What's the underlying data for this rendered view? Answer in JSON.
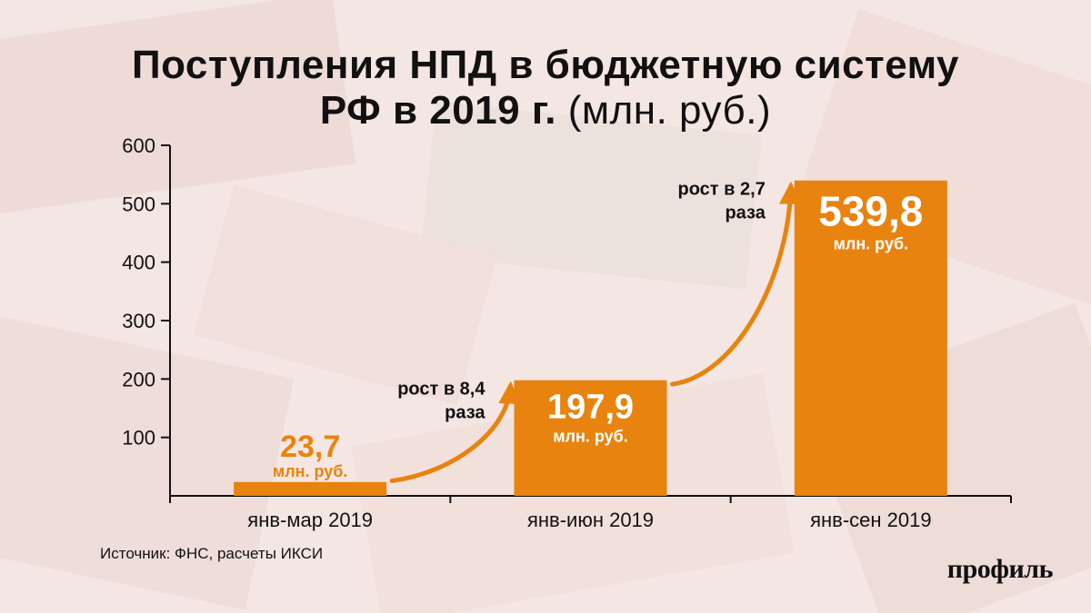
{
  "title": {
    "line1": "Поступления НПД в бюджетную систему",
    "line2_main": "РФ в 2019 г.",
    "line2_unit": "(млн. руб.)"
  },
  "source": "Источник: ФНС, расчеты ИКСИ",
  "logo": "профиль",
  "colors": {
    "bar": "#e8830f",
    "arrow": "#e8830f",
    "text": "#111111",
    "value_on_bar": "#ffffff"
  },
  "chart_data": {
    "type": "bar",
    "categories": [
      "янв-мар 2019",
      "янв-июн 2019",
      "янв-сен 2019"
    ],
    "values": [
      23.7,
      197.9,
      539.8
    ],
    "value_labels": [
      "23,7",
      "197,9",
      "539,8"
    ],
    "value_unit": "млн. руб.",
    "y_ticks": [
      100,
      200,
      300,
      400,
      500,
      600
    ],
    "ylim": [
      0,
      600
    ],
    "grid": false,
    "growth_annotations": [
      {
        "line1": "рост в 8,4",
        "line2": "раза"
      },
      {
        "line1": "рост в 2,7",
        "line2": "раза"
      }
    ]
  }
}
